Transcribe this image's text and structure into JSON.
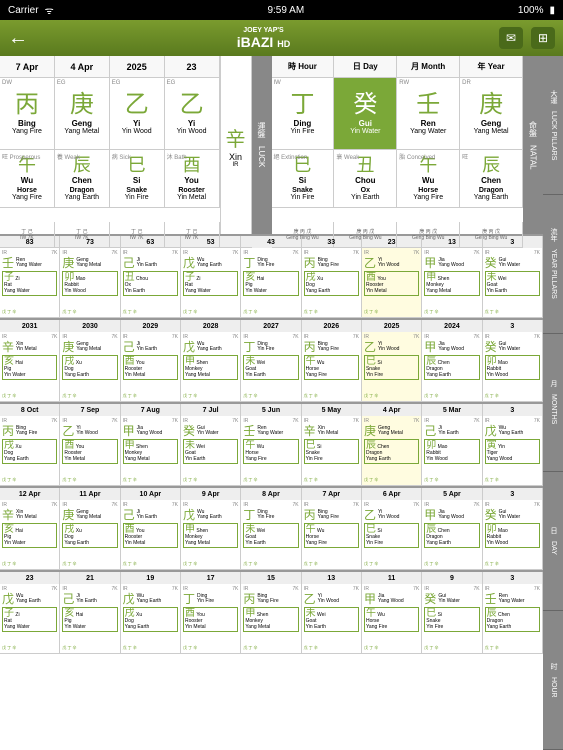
{
  "statusbar": {
    "carrier": "Carrier",
    "wifi": "ᯤ",
    "time": "9:59 AM",
    "battery": "100%"
  },
  "header": {
    "logo_top": "JOEY YAP'S",
    "logo_main": "iBAZI",
    "logo_hd": "HD"
  },
  "dates": [
    "7 Apr",
    "4 Apr",
    "2025",
    "23"
  ],
  "time_labels": [
    "時 Hour",
    "日 Day",
    "月 Month",
    "年 Year"
  ],
  "luck_label": "運盤　LUCK",
  "natal_label": "命盤　NATAL",
  "luck_stems": [
    {
      "tag": "DW",
      "char": "丙",
      "pinyin": "Bing",
      "elem": "Yang Fire"
    },
    {
      "tag": "EG",
      "char": "庚",
      "pinyin": "Geng",
      "elem": "Yang Metal"
    },
    {
      "tag": "EG",
      "char": "乙",
      "pinyin": "Yi",
      "elem": "Yin Wood"
    },
    {
      "tag": "EG",
      "char": "乙",
      "pinyin": "Yi",
      "elem": "Yin Wood"
    }
  ],
  "luck_branches": [
    {
      "char": "午",
      "pinyin": "Wu",
      "nm": "Horse",
      "elem": "Yang Fire",
      "side": "旺 Prosperous"
    },
    {
      "char": "辰",
      "pinyin": "Chen",
      "nm": "Dragon",
      "elem": "Yang Earth",
      "side": "養 Weak"
    },
    {
      "char": "巳",
      "pinyin": "Si",
      "nm": "Snake",
      "elem": "Yin Fire",
      "side": "病 Sick"
    },
    {
      "char": "酉",
      "pinyin": "You",
      "nm": "Rooster",
      "elem": "Yin Metal",
      "side": "沐 Bath"
    }
  ],
  "natal_stems": [
    {
      "tag": "IW",
      "char": "丁",
      "pinyin": "Ding",
      "elem": "Yin Fire"
    },
    {
      "tag": "",
      "char": "癸",
      "pinyin": "Gui",
      "elem": "Yin Water",
      "hl": true
    },
    {
      "tag": "RW",
      "char": "壬",
      "pinyin": "Ren",
      "elem": "Yang Water"
    },
    {
      "tag": "DR",
      "char": "庚",
      "pinyin": "Geng",
      "elem": "Yang Metal"
    }
  ],
  "natal_branches": [
    {
      "char": "巳",
      "pinyin": "Si",
      "nm": "Snake",
      "elem": "Yin Fire",
      "side": "絕 Extinction"
    },
    {
      "char": "丑",
      "pinyin": "Chou",
      "nm": "Ox",
      "elem": "Yin Earth",
      "side": "衰 Weak"
    },
    {
      "char": "午",
      "pinyin": "Wu",
      "nm": "Horse",
      "elem": "Yang Fire",
      "side": "胎 Conceived"
    },
    {
      "char": "辰",
      "pinyin": "Chen",
      "nm": "Dragon",
      "elem": "Yang Earth",
      "side": "旺"
    }
  ],
  "xin": {
    "char": "辛",
    "pinyin": "Xin",
    "elem": "IR"
  },
  "sections": [
    {
      "label": "大運　LUCK PILLARS",
      "headers": [
        "83",
        "73",
        "63",
        "53",
        "43",
        "33",
        "23",
        "13"
      ],
      "cells": [
        {
          "s": "壬 Ren",
          "sn": "Yang Water",
          "b": "子 Zi",
          "bn": "Rat",
          "be": "Yang Water"
        },
        {
          "s": "庚 Geng",
          "sn": "Yang Metal",
          "b": "卯 Mao",
          "bn": "Rabbit",
          "be": "Yin Wood"
        },
        {
          "s": "己 Ji",
          "sn": "Yin Earth",
          "b": "丑 Chou",
          "bn": "Ox",
          "be": "Yin Earth"
        },
        {
          "s": "戊 Wu",
          "sn": "Yang Earth",
          "b": "子 Zi",
          "bn": "Rat",
          "be": "Yang Water"
        },
        {
          "s": "丁 Ding",
          "sn": "Yin Fire",
          "b": "亥 Hai",
          "bn": "Pig",
          "be": "Yin Water"
        },
        {
          "s": "丙 Bing",
          "sn": "Yang Fire",
          "b": "戌 Xu",
          "bn": "Dog",
          "be": "Yang Earth"
        },
        {
          "s": "乙 Yi",
          "sn": "Yin Wood",
          "b": "酉 You",
          "bn": "Rooster",
          "be": "Yin Metal",
          "hl": true
        },
        {
          "s": "甲 Jia",
          "sn": "Yang Wood",
          "b": "申 Shen",
          "bn": "Monkey",
          "be": "Yang Metal"
        }
      ],
      "extra": {
        "s": "癸 Gui",
        "sn": "Yin Water",
        "b": "未 Wei",
        "bn": "Goat",
        "be": "Yin Earth"
      }
    },
    {
      "label": "流年　YEAR PILLARS",
      "headers": [
        "2031",
        "2030",
        "2029",
        "2028",
        "2027",
        "2026",
        "2025",
        "2024"
      ],
      "cells": [
        {
          "s": "辛 Xin",
          "sn": "Yin Metal",
          "b": "亥 Hai",
          "bn": "Pig",
          "be": "Yin Water"
        },
        {
          "s": "庚 Geng",
          "sn": "Yang Metal",
          "b": "戌 Xu",
          "bn": "Dog",
          "be": "Yang Earth"
        },
        {
          "s": "己 Ji",
          "sn": "Yin Earth",
          "b": "酉 You",
          "bn": "Rooster",
          "be": "Yin Metal"
        },
        {
          "s": "戊 Wu",
          "sn": "Yang Earth",
          "b": "申 Shen",
          "bn": "Monkey",
          "be": "Yang Metal"
        },
        {
          "s": "丁 Ding",
          "sn": "Yin Fire",
          "b": "未 Wei",
          "bn": "Goat",
          "be": "Yin Earth"
        },
        {
          "s": "丙 Bing",
          "sn": "Yang Fire",
          "b": "午 Wu",
          "bn": "Horse",
          "be": "Yang Fire"
        },
        {
          "s": "乙 Yi",
          "sn": "Yin Wood",
          "b": "巳 Si",
          "bn": "Snake",
          "be": "Yin Fire",
          "hl": true
        },
        {
          "s": "甲 Jia",
          "sn": "Yang Wood",
          "b": "辰 Chen",
          "bn": "Dragon",
          "be": "Yang Earth"
        }
      ],
      "extra": {
        "s": "癸 Gui",
        "sn": "Yin Water",
        "b": "卯 Mao",
        "bn": "Rabbit",
        "be": "Yin Wood"
      }
    },
    {
      "label": "月　MONTHS",
      "headers": [
        "8 Oct",
        "7 Sep",
        "7 Aug",
        "7 Jul",
        "5 Jun",
        "5 May",
        "4 Apr",
        "5 Mar"
      ],
      "cells": [
        {
          "s": "丙 Bing",
          "sn": "Yang Fire",
          "b": "戌 Xu",
          "bn": "Dog",
          "be": "Yang Earth"
        },
        {
          "s": "乙 Yi",
          "sn": "Yin Wood",
          "b": "酉 You",
          "bn": "Rooster",
          "be": "Yin Metal"
        },
        {
          "s": "甲 Jia",
          "sn": "Yang Wood",
          "b": "申 Shen",
          "bn": "Monkey",
          "be": "Yang Metal"
        },
        {
          "s": "癸 Gui",
          "sn": "Yin Water",
          "b": "未 Wei",
          "bn": "Goat",
          "be": "Yin Earth"
        },
        {
          "s": "壬 Ren",
          "sn": "Yang Water",
          "b": "午 Wu",
          "bn": "Horse",
          "be": "Yang Fire"
        },
        {
          "s": "辛 Xin",
          "sn": "Yin Metal",
          "b": "巳 Si",
          "bn": "Snake",
          "be": "Yin Fire"
        },
        {
          "s": "庚 Geng",
          "sn": "Yang Metal",
          "b": "辰 Chen",
          "bn": "Dragon",
          "be": "Yang Earth",
          "hl": true
        },
        {
          "s": "己 Ji",
          "sn": "Yin Earth",
          "b": "卯 Mao",
          "bn": "Rabbit",
          "be": "Yin Wood"
        }
      ],
      "extra": {
        "s": "戊 Wu",
        "sn": "Yang Earth",
        "b": "寅 Yin",
        "bn": "Tiger",
        "be": "Yang Wood"
      }
    },
    {
      "label": "日　DAY",
      "headers": [
        "12 Apr",
        "11 Apr",
        "10 Apr",
        "9 Apr",
        "8 Apr",
        "7 Apr",
        "6 Apr",
        "5 Apr"
      ],
      "cells": [
        {
          "s": "辛 Xin",
          "sn": "Yin Metal",
          "b": "亥 Hai",
          "bn": "Pig",
          "be": "Yin Water"
        },
        {
          "s": "庚 Geng",
          "sn": "Yang Metal",
          "b": "戌 Xu",
          "bn": "Dog",
          "be": "Yang Earth"
        },
        {
          "s": "己 Ji",
          "sn": "Yin Earth",
          "b": "酉 You",
          "bn": "Rooster",
          "be": "Yin Metal"
        },
        {
          "s": "戊 Wu",
          "sn": "Yang Earth",
          "b": "申 Shen",
          "bn": "Monkey",
          "be": "Yang Metal"
        },
        {
          "s": "丁 Ding",
          "sn": "Yin Fire",
          "b": "未 Wei",
          "bn": "Goat",
          "be": "Yin Earth"
        },
        {
          "s": "丙 Bing",
          "sn": "Yang Fire",
          "b": "午 Wu",
          "bn": "Horse",
          "be": "Yang Fire"
        },
        {
          "s": "乙 Yi",
          "sn": "Yin Wood",
          "b": "巳 Si",
          "bn": "Snake",
          "be": "Yin Fire"
        },
        {
          "s": "甲 Jia",
          "sn": "Yang Wood",
          "b": "辰 Chen",
          "bn": "Dragon",
          "be": "Yang Earth"
        }
      ],
      "extra": {
        "s": "癸 Gui",
        "sn": "Yin Water",
        "b": "卯 Mao",
        "bn": "Rabbit",
        "be": "Yin Wood"
      }
    },
    {
      "label": "时　HOUR",
      "headers": [
        "23",
        "21",
        "19",
        "17",
        "15",
        "13",
        "11",
        "9"
      ],
      "cells": [
        {
          "s": "戊 Wu",
          "sn": "Yang Earth",
          "b": "子 Zi",
          "bn": "Rat",
          "be": "Yang Water"
        },
        {
          "s": "己 Ji",
          "sn": "Yin Earth",
          "b": "亥 Hai",
          "bn": "Pig",
          "be": "Yin Water"
        },
        {
          "s": "戊 Wu",
          "sn": "Yang Earth",
          "b": "戌 Xu",
          "bn": "Dog",
          "be": "Yang Earth"
        },
        {
          "s": "丁 Ding",
          "sn": "Yin Fire",
          "b": "酉 You",
          "bn": "Rooster",
          "be": "Yin Metal"
        },
        {
          "s": "丙 Bing",
          "sn": "Yang Fire",
          "b": "申 Shen",
          "bn": "Monkey",
          "be": "Yang Metal"
        },
        {
          "s": "乙 Yi",
          "sn": "Yin Wood",
          "b": "未 Wei",
          "bn": "Goat",
          "be": "Yin Earth"
        },
        {
          "s": "甲 Jia",
          "sn": "Yang Wood",
          "b": "午 Wu",
          "bn": "Horse",
          "be": "Yang Fire"
        },
        {
          "s": "癸 Gui",
          "sn": "Yin Water",
          "b": "巳 Si",
          "bn": "Snake",
          "be": "Yin Fire"
        }
      ],
      "extra": {
        "s": "壬 Ren",
        "sn": "Yang Water",
        "b": "辰 Chen",
        "bn": "Dragon",
        "be": "Yang Earth"
      }
    }
  ]
}
